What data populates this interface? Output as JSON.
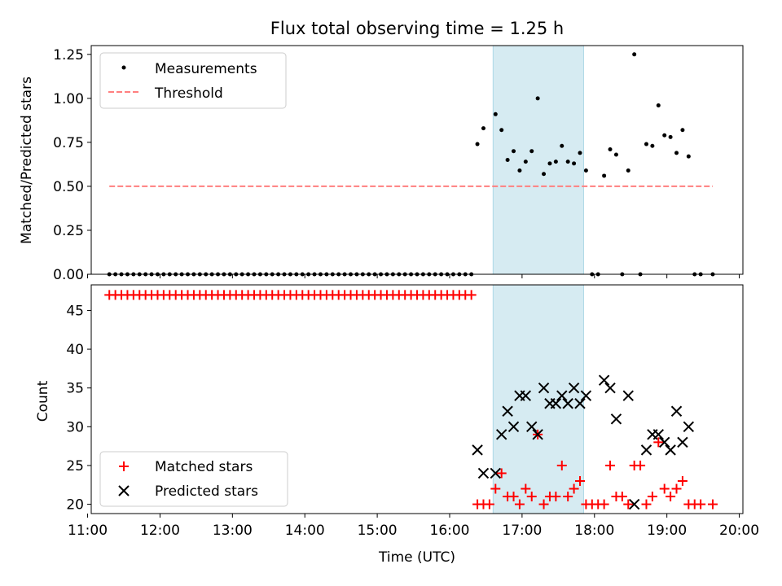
{
  "chart_data": [
    {
      "type": "scatter",
      "title": "Flux total observing time = 1.25 h",
      "ylabel": "Matched/Predicted stars",
      "xlim": [
        "11:03",
        "20:03"
      ],
      "ylim": [
        0,
        1.3
      ],
      "yticks": [
        0,
        0.25,
        0.5,
        0.75,
        1.0,
        1.25
      ],
      "ytick_labels": [
        "0.00",
        "0.25",
        "0.50",
        "0.75",
        "1.00",
        "1.25"
      ],
      "shaded_span": [
        "16:36",
        "17:51"
      ],
      "legend_position": "top-left",
      "series": [
        {
          "name": "Measurements",
          "marker": "dot",
          "color": "#000000",
          "zero_points_x": [
            "11:18",
            "11:23",
            "11:28",
            "11:33",
            "11:38",
            "11:43",
            "11:48",
            "11:53",
            "11:58",
            "12:03",
            "12:08",
            "12:13",
            "12:18",
            "12:23",
            "12:28",
            "12:33",
            "12:38",
            "12:43",
            "12:48",
            "12:53",
            "12:58",
            "13:03",
            "13:08",
            "13:13",
            "13:18",
            "13:23",
            "13:28",
            "13:33",
            "13:38",
            "13:43",
            "13:48",
            "13:53",
            "13:58",
            "14:03",
            "14:08",
            "14:13",
            "14:18",
            "14:23",
            "14:28",
            "14:33",
            "14:38",
            "14:43",
            "14:48",
            "14:53",
            "14:58",
            "15:03",
            "15:08",
            "15:13",
            "15:18",
            "15:23",
            "15:28",
            "15:33",
            "15:38",
            "15:43",
            "15:48",
            "15:53",
            "15:58",
            "16:03",
            "16:08",
            "16:13",
            "16:18",
            "17:58",
            "18:03",
            "18:23",
            "18:38",
            "19:23",
            "19:28",
            "19:38"
          ],
          "points": [
            {
              "x": "16:23",
              "y": 0.74
            },
            {
              "x": "16:28",
              "y": 0.83
            },
            {
              "x": "16:38",
              "y": 0.91
            },
            {
              "x": "16:43",
              "y": 0.82
            },
            {
              "x": "16:48",
              "y": 0.65
            },
            {
              "x": "16:53",
              "y": 0.7
            },
            {
              "x": "16:58",
              "y": 0.59
            },
            {
              "x": "17:03",
              "y": 0.64
            },
            {
              "x": "17:08",
              "y": 0.7
            },
            {
              "x": "17:13",
              "y": 1.0
            },
            {
              "x": "17:18",
              "y": 0.57
            },
            {
              "x": "17:23",
              "y": 0.63
            },
            {
              "x": "17:28",
              "y": 0.64
            },
            {
              "x": "17:33",
              "y": 0.73
            },
            {
              "x": "17:38",
              "y": 0.64
            },
            {
              "x": "17:43",
              "y": 0.63
            },
            {
              "x": "17:48",
              "y": 0.69
            },
            {
              "x": "17:53",
              "y": 0.59
            },
            {
              "x": "18:08",
              "y": 0.56
            },
            {
              "x": "18:13",
              "y": 0.71
            },
            {
              "x": "18:18",
              "y": 0.68
            },
            {
              "x": "18:28",
              "y": 0.59
            },
            {
              "x": "18:33",
              "y": 1.25
            },
            {
              "x": "18:43",
              "y": 0.74
            },
            {
              "x": "18:48",
              "y": 0.73
            },
            {
              "x": "18:53",
              "y": 0.96
            },
            {
              "x": "18:58",
              "y": 0.79
            },
            {
              "x": "19:03",
              "y": 0.78
            },
            {
              "x": "19:08",
              "y": 0.69
            },
            {
              "x": "19:13",
              "y": 0.82
            },
            {
              "x": "19:18",
              "y": 0.67
            }
          ]
        },
        {
          "name": "Threshold",
          "type": "line",
          "style": "dashed",
          "color": "#ff7f7f",
          "x": [
            "11:18",
            "19:38"
          ],
          "y": [
            0.5,
            0.5
          ]
        }
      ]
    },
    {
      "type": "scatter",
      "xlabel": "Time (UTC)",
      "ylabel": "Count",
      "xlim": [
        "11:03",
        "20:03"
      ],
      "xtick_labels": [
        "11:00",
        "12:00",
        "13:00",
        "14:00",
        "15:00",
        "16:00",
        "17:00",
        "18:00",
        "19:00",
        "20:00"
      ],
      "ylim": [
        18.8,
        48.3
      ],
      "yticks": [
        20,
        25,
        30,
        35,
        40,
        45
      ],
      "ytick_labels": [
        "20",
        "25",
        "30",
        "35",
        "40",
        "45"
      ],
      "shaded_span": [
        "16:36",
        "17:51"
      ],
      "legend_position": "bottom-left",
      "series": [
        {
          "name": "Matched stars",
          "marker": "plus",
          "color": "#ff0000",
          "constant_47_x": [
            "11:18",
            "11:23",
            "11:28",
            "11:33",
            "11:38",
            "11:43",
            "11:48",
            "11:53",
            "11:58",
            "12:03",
            "12:08",
            "12:13",
            "12:18",
            "12:23",
            "12:28",
            "12:33",
            "12:38",
            "12:43",
            "12:48",
            "12:53",
            "12:58",
            "13:03",
            "13:08",
            "13:13",
            "13:18",
            "13:23",
            "13:28",
            "13:33",
            "13:38",
            "13:43",
            "13:48",
            "13:53",
            "13:58",
            "14:03",
            "14:08",
            "14:13",
            "14:18",
            "14:23",
            "14:28",
            "14:33",
            "14:38",
            "14:43",
            "14:48",
            "14:53",
            "14:58",
            "15:03",
            "15:08",
            "15:13",
            "15:18",
            "15:23",
            "15:28",
            "15:33",
            "15:38",
            "15:43",
            "15:48",
            "15:53",
            "15:58",
            "16:03",
            "16:08",
            "16:13",
            "16:18"
          ],
          "points": [
            {
              "x": "16:23",
              "y": 20
            },
            {
              "x": "16:28",
              "y": 20
            },
            {
              "x": "16:33",
              "y": 20
            },
            {
              "x": "16:38",
              "y": 22
            },
            {
              "x": "16:43",
              "y": 24
            },
            {
              "x": "16:48",
              "y": 21
            },
            {
              "x": "16:53",
              "y": 21
            },
            {
              "x": "16:58",
              "y": 20
            },
            {
              "x": "17:03",
              "y": 22
            },
            {
              "x": "17:08",
              "y": 21
            },
            {
              "x": "17:13",
              "y": 29
            },
            {
              "x": "17:18",
              "y": 20
            },
            {
              "x": "17:23",
              "y": 21
            },
            {
              "x": "17:28",
              "y": 21
            },
            {
              "x": "17:33",
              "y": 25
            },
            {
              "x": "17:38",
              "y": 21
            },
            {
              "x": "17:43",
              "y": 22
            },
            {
              "x": "17:48",
              "y": 23
            },
            {
              "x": "17:53",
              "y": 20
            },
            {
              "x": "17:58",
              "y": 20
            },
            {
              "x": "18:03",
              "y": 20
            },
            {
              "x": "18:08",
              "y": 20
            },
            {
              "x": "18:13",
              "y": 25
            },
            {
              "x": "18:18",
              "y": 21
            },
            {
              "x": "18:23",
              "y": 21
            },
            {
              "x": "18:28",
              "y": 20
            },
            {
              "x": "18:33",
              "y": 25
            },
            {
              "x": "18:38",
              "y": 25
            },
            {
              "x": "18:43",
              "y": 20
            },
            {
              "x": "18:48",
              "y": 21
            },
            {
              "x": "18:53",
              "y": 28
            },
            {
              "x": "18:58",
              "y": 22
            },
            {
              "x": "19:03",
              "y": 21
            },
            {
              "x": "19:08",
              "y": 22
            },
            {
              "x": "19:13",
              "y": 23
            },
            {
              "x": "19:18",
              "y": 20
            },
            {
              "x": "19:23",
              "y": 20
            },
            {
              "x": "19:28",
              "y": 20
            },
            {
              "x": "19:38",
              "y": 20
            }
          ]
        },
        {
          "name": "Predicted stars",
          "marker": "x",
          "color": "#000000",
          "points": [
            {
              "x": "16:23",
              "y": 27
            },
            {
              "x": "16:28",
              "y": 24
            },
            {
              "x": "16:38",
              "y": 24
            },
            {
              "x": "16:43",
              "y": 29
            },
            {
              "x": "16:48",
              "y": 32
            },
            {
              "x": "16:53",
              "y": 30
            },
            {
              "x": "16:58",
              "y": 34
            },
            {
              "x": "17:03",
              "y": 34
            },
            {
              "x": "17:08",
              "y": 30
            },
            {
              "x": "17:13",
              "y": 29
            },
            {
              "x": "17:18",
              "y": 35
            },
            {
              "x": "17:23",
              "y": 33
            },
            {
              "x": "17:28",
              "y": 33
            },
            {
              "x": "17:33",
              "y": 34
            },
            {
              "x": "17:38",
              "y": 33
            },
            {
              "x": "17:43",
              "y": 35
            },
            {
              "x": "17:48",
              "y": 33
            },
            {
              "x": "17:53",
              "y": 34
            },
            {
              "x": "18:08",
              "y": 36
            },
            {
              "x": "18:13",
              "y": 35
            },
            {
              "x": "18:18",
              "y": 31
            },
            {
              "x": "18:28",
              "y": 34
            },
            {
              "x": "18:33",
              "y": 20
            },
            {
              "x": "18:43",
              "y": 27
            },
            {
              "x": "18:48",
              "y": 29
            },
            {
              "x": "18:53",
              "y": 29
            },
            {
              "x": "18:58",
              "y": 28
            },
            {
              "x": "19:03",
              "y": 27
            },
            {
              "x": "19:08",
              "y": 32
            },
            {
              "x": "19:13",
              "y": 28
            },
            {
              "x": "19:18",
              "y": 30
            }
          ]
        }
      ]
    }
  ]
}
